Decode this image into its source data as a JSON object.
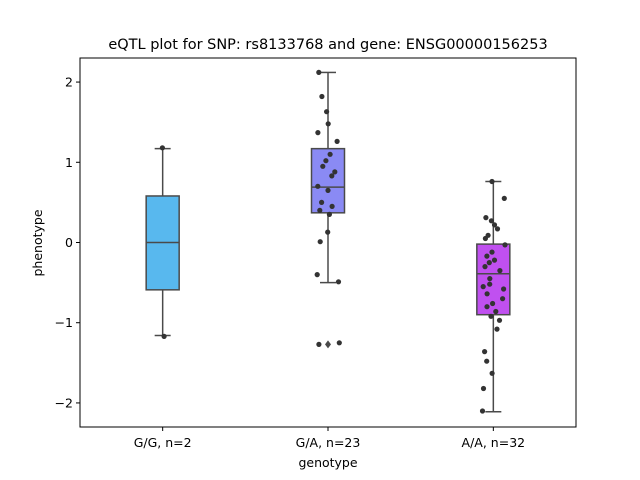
{
  "chart_data": {
    "type": "box",
    "title": "eQTL plot for SNP: rs8133768 and gene: ENSG00000156253",
    "xlabel": "genotype",
    "ylabel": "phenotype",
    "ylim": [
      -2.3,
      2.3
    ],
    "yticks": [
      -2,
      -1,
      0,
      1,
      2
    ],
    "ytick_labels": [
      "−2",
      "−1",
      "0",
      "1",
      "2"
    ],
    "grid": false,
    "categories": [
      "G/G, n=2",
      "G/A, n=23",
      "A/A, n=32"
    ],
    "colors": [
      "#58b8ee",
      "#8a8af4",
      "#c050f0"
    ],
    "boxes": [
      {
        "whisker_low": -1.16,
        "q1": -0.59,
        "median": 0.0,
        "q3": 0.58,
        "whisker_high": 1.17,
        "outliers": []
      },
      {
        "whisker_low": -0.5,
        "q1": 0.37,
        "median": 0.69,
        "q3": 1.17,
        "whisker_high": 2.12,
        "outliers": [
          -1.27
        ]
      },
      {
        "whisker_low": -2.11,
        "q1": -0.9,
        "median": -0.39,
        "q3": -0.02,
        "whisker_high": 0.76,
        "outliers": []
      }
    ],
    "points": [
      [
        1.18,
        -1.17
      ],
      [
        2.12,
        1.82,
        1.63,
        1.48,
        1.37,
        1.26,
        1.1,
        1.02,
        0.95,
        0.88,
        0.83,
        0.7,
        0.65,
        0.5,
        0.45,
        0.4,
        0.35,
        0.13,
        0.01,
        -0.4,
        -0.49,
        -1.25,
        -1.27
      ],
      [
        0.76,
        0.55,
        0.31,
        0.27,
        0.22,
        0.17,
        0.09,
        0.05,
        -0.03,
        -0.12,
        -0.17,
        -0.22,
        -0.25,
        -0.3,
        -0.35,
        -0.45,
        -0.52,
        -0.55,
        -0.58,
        -0.64,
        -0.7,
        -0.76,
        -0.8,
        -0.86,
        -0.92,
        -0.97,
        -1.08,
        -1.36,
        -1.48,
        -1.63,
        -1.82,
        -2.1
      ]
    ]
  }
}
